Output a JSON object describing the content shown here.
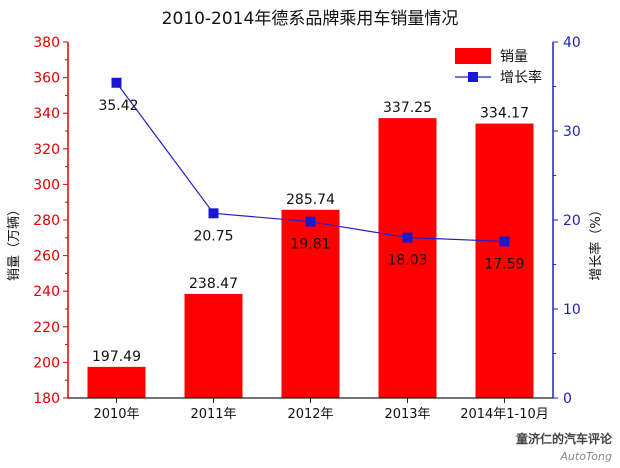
{
  "chart_data": {
    "type": "bar",
    "title": "2010-2014年德系品牌乘用车销量情况",
    "categories": [
      "2010年",
      "2011年",
      "2012年",
      "2013年",
      "2014年1-10月"
    ],
    "series": [
      {
        "name": "销量",
        "type": "bar",
        "axis": "left",
        "color": "#ff0000",
        "values": [
          197.49,
          238.47,
          285.74,
          337.25,
          334.17
        ]
      },
      {
        "name": "增长率",
        "type": "line",
        "axis": "right",
        "color": "#1f1fcc",
        "values": [
          35.42,
          20.75,
          19.81,
          18.03,
          17.59
        ]
      }
    ],
    "ylabel": "销量（万辆）",
    "y2label": "增长率（%）",
    "ylim": [
      180,
      380
    ],
    "y2lim": [
      0,
      40
    ],
    "yticks": [
      180,
      200,
      220,
      240,
      260,
      280,
      300,
      320,
      340,
      360,
      380
    ],
    "y2ticks": [
      0,
      10,
      20,
      30,
      40
    ],
    "legend_position": "top-right",
    "grid": false,
    "left_axis_color": "#e00000",
    "right_axis_color": "#2020c0"
  },
  "watermark": {
    "line1": "童济仁的汽车评论",
    "line2": "AutoTong"
  }
}
